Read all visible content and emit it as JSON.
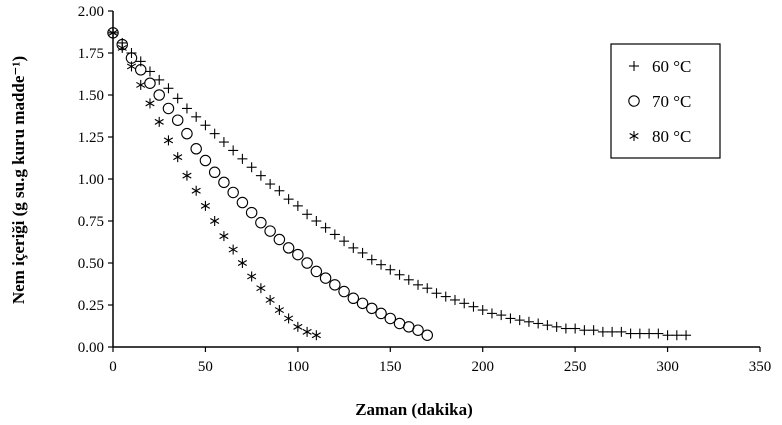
{
  "chart_data": {
    "type": "scatter",
    "xlabel": "Zaman (dakika)",
    "ylabel": "Nem içeriği (g su.g kuru madde⁻¹)",
    "xlim": [
      0,
      350
    ],
    "ylim": [
      0,
      2.0
    ],
    "x_ticks": [
      "0",
      "50",
      "100",
      "150",
      "200",
      "250",
      "300",
      "350"
    ],
    "y_ticks": [
      "0.00",
      "0.25",
      "0.50",
      "0.75",
      "1.00",
      "1.25",
      "1.50",
      "1.75",
      "2.00"
    ],
    "grid": false,
    "legend_position": "top-right",
    "series": [
      {
        "name": "60 °C",
        "marker": "plus",
        "x": [
          0,
          5,
          10,
          15,
          20,
          25,
          30,
          35,
          40,
          45,
          50,
          55,
          60,
          65,
          70,
          75,
          80,
          85,
          90,
          95,
          100,
          105,
          110,
          115,
          120,
          125,
          130,
          135,
          140,
          145,
          150,
          155,
          160,
          165,
          170,
          175,
          180,
          185,
          190,
          195,
          200,
          205,
          210,
          215,
          220,
          225,
          230,
          235,
          240,
          245,
          250,
          255,
          260,
          265,
          270,
          275,
          280,
          285,
          290,
          295,
          300,
          305,
          310
        ],
        "y": [
          1.87,
          1.81,
          1.75,
          1.7,
          1.64,
          1.59,
          1.54,
          1.48,
          1.42,
          1.37,
          1.32,
          1.27,
          1.22,
          1.17,
          1.12,
          1.07,
          1.02,
          0.97,
          0.93,
          0.88,
          0.84,
          0.79,
          0.75,
          0.71,
          0.67,
          0.63,
          0.59,
          0.56,
          0.52,
          0.49,
          0.46,
          0.43,
          0.4,
          0.37,
          0.35,
          0.32,
          0.3,
          0.28,
          0.26,
          0.24,
          0.22,
          0.2,
          0.19,
          0.17,
          0.16,
          0.15,
          0.14,
          0.13,
          0.12,
          0.11,
          0.11,
          0.1,
          0.1,
          0.09,
          0.09,
          0.09,
          0.08,
          0.08,
          0.08,
          0.08,
          0.07,
          0.07,
          0.07
        ]
      },
      {
        "name": "70 °C",
        "marker": "circle",
        "x": [
          0,
          5,
          10,
          15,
          20,
          25,
          30,
          35,
          40,
          45,
          50,
          55,
          60,
          65,
          70,
          75,
          80,
          85,
          90,
          95,
          100,
          105,
          110,
          115,
          120,
          125,
          130,
          135,
          140,
          145,
          150,
          155,
          160,
          165,
          170
        ],
        "y": [
          1.87,
          1.8,
          1.72,
          1.65,
          1.57,
          1.5,
          1.42,
          1.35,
          1.27,
          1.18,
          1.11,
          1.04,
          0.98,
          0.92,
          0.86,
          0.8,
          0.74,
          0.69,
          0.64,
          0.59,
          0.55,
          0.5,
          0.45,
          0.41,
          0.37,
          0.33,
          0.29,
          0.26,
          0.23,
          0.2,
          0.17,
          0.14,
          0.12,
          0.1,
          0.07
        ]
      },
      {
        "name": "80 °C",
        "marker": "asterisk",
        "x": [
          0,
          5,
          10,
          15,
          20,
          25,
          30,
          35,
          40,
          45,
          50,
          55,
          60,
          65,
          70,
          75,
          80,
          85,
          90,
          95,
          100,
          105,
          110
        ],
        "y": [
          1.87,
          1.78,
          1.67,
          1.56,
          1.45,
          1.34,
          1.23,
          1.13,
          1.02,
          0.93,
          0.84,
          0.75,
          0.66,
          0.58,
          0.5,
          0.42,
          0.35,
          0.28,
          0.22,
          0.17,
          0.12,
          0.09,
          0.07
        ]
      }
    ]
  }
}
